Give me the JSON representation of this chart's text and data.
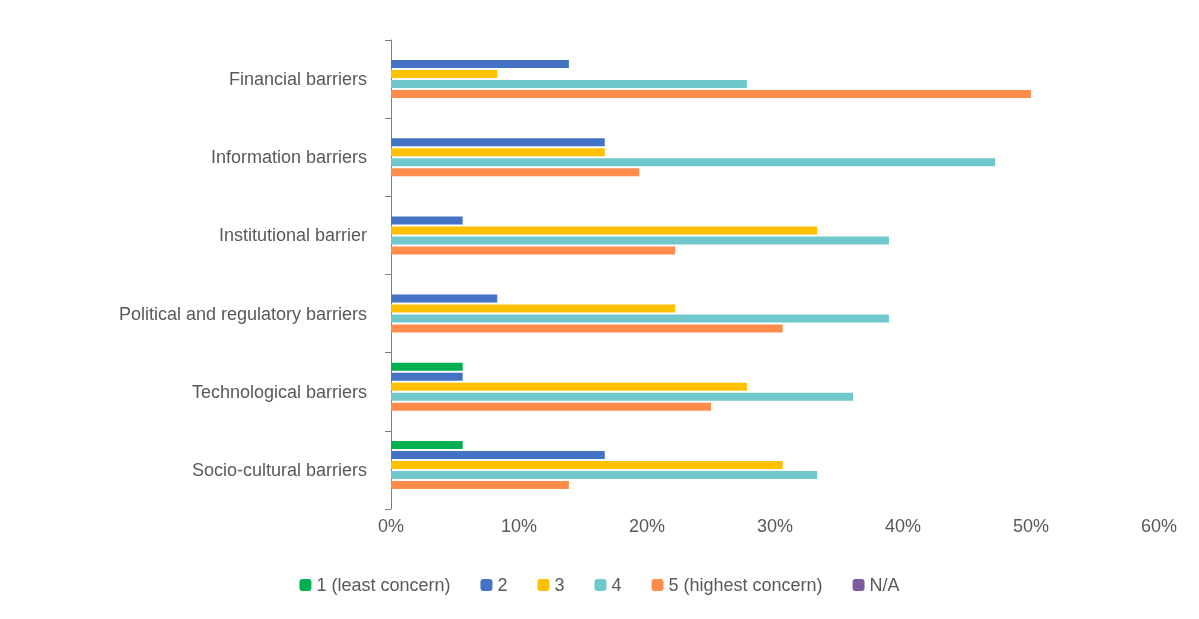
{
  "chart_data": {
    "type": "bar",
    "orientation": "horizontal",
    "categories": [
      "Financial barriers",
      "Information barriers",
      "Institutional barrier",
      "Political and regulatory barriers",
      "Technological barriers",
      "Socio-cultural barriers"
    ],
    "series": [
      {
        "name": "1 (least concern)",
        "color": "#00b050",
        "values": [
          0,
          0,
          0,
          0,
          5.6,
          5.6
        ]
      },
      {
        "name": "2",
        "color": "#4472c4",
        "values": [
          13.9,
          16.7,
          5.6,
          8.3,
          5.6,
          16.7
        ]
      },
      {
        "name": "3",
        "color": "#ffc000",
        "values": [
          8.3,
          16.7,
          33.3,
          22.2,
          27.8,
          30.6
        ]
      },
      {
        "name": "4",
        "color": "#70c8cc",
        "values": [
          27.8,
          47.2,
          38.9,
          38.9,
          36.1,
          33.3
        ]
      },
      {
        "name": "5 (highest concern)",
        "color": "#ff8c4a",
        "values": [
          50.0,
          19.4,
          22.2,
          30.6,
          25.0,
          13.9
        ]
      },
      {
        "name": "N/A",
        "color": "#7c5c9c",
        "values": [
          0,
          0,
          0,
          0,
          0,
          0
        ]
      }
    ],
    "xlim": [
      0,
      60
    ],
    "xticks": [
      {
        "value": 0,
        "label": "0%"
      },
      {
        "value": 10,
        "label": "10%"
      },
      {
        "value": 20,
        "label": "20%"
      },
      {
        "value": 30,
        "label": "30%"
      },
      {
        "value": 40,
        "label": "40%"
      },
      {
        "value": 50,
        "label": "50%"
      },
      {
        "value": 60,
        "label": "60%"
      }
    ],
    "grid": false,
    "legend": "bottom"
  }
}
